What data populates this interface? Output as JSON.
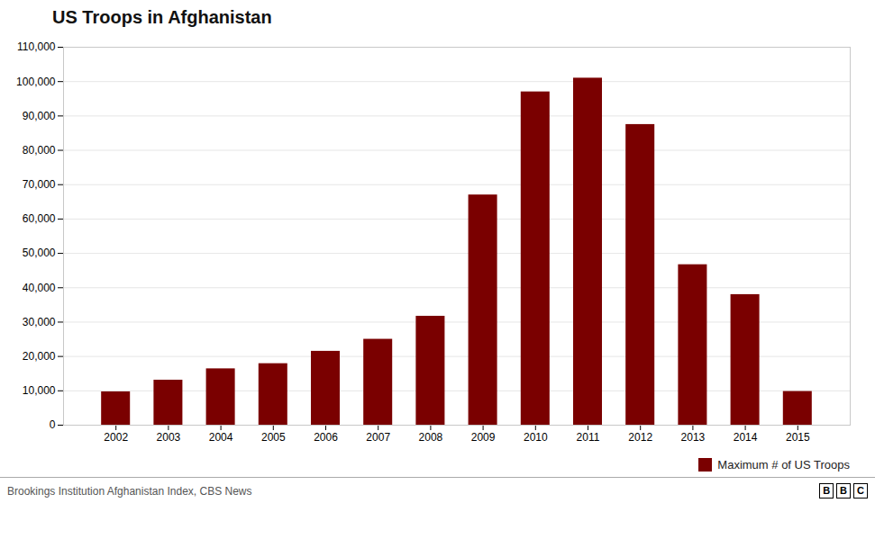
{
  "chart_data": {
    "type": "bar",
    "title": "US Troops in Afghanistan",
    "x": [
      2002,
      2003,
      2004,
      2005,
      2006,
      2007,
      2008,
      2009,
      2010,
      2011,
      2012,
      2013,
      2014,
      2015
    ],
    "series": [
      {
        "name": "Maximum # of US Troops",
        "color": "#7a0000",
        "values": [
          9700,
          13100,
          16400,
          17900,
          21500,
          25000,
          31700,
          67000,
          97000,
          101000,
          87500,
          46700,
          38000,
          9800
        ]
      }
    ],
    "xlim": [
      2001,
      2016
    ],
    "xticks": [
      2002,
      2003,
      2004,
      2005,
      2006,
      2007,
      2008,
      2009,
      2010,
      2011,
      2012,
      2013,
      2014,
      2015
    ],
    "ylim": [
      0,
      110000
    ],
    "yticks": [
      0,
      {
        "value": 10000,
        "label": "10,000"
      },
      {
        "value": 20000,
        "label": "20,000"
      },
      {
        "value": 30000,
        "label": "30,000"
      },
      {
        "value": 40000,
        "label": "40,000"
      },
      {
        "value": 50000,
        "label": "50,000"
      },
      {
        "value": 60000,
        "label": "60,000"
      },
      {
        "value": 70000,
        "label": "70,000"
      },
      {
        "value": 80000,
        "label": "80,000"
      },
      {
        "value": 90000,
        "label": "90,000"
      },
      {
        "value": 100000,
        "label": "100,000"
      },
      {
        "value": 110000,
        "label": "110,000"
      }
    ],
    "grid": true,
    "legend": "bottom-right",
    "caption": "Brookings Institution Afghanistan Index, CBS News",
    "annotations": [
      "BBC"
    ]
  }
}
